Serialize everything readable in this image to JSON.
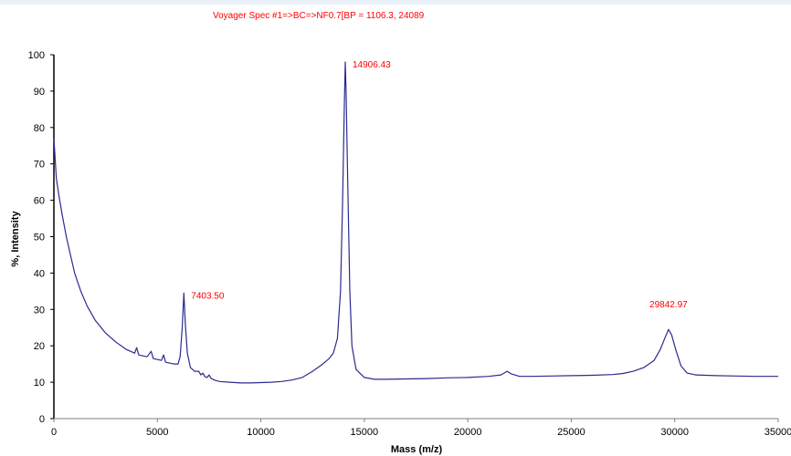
{
  "chart_data": {
    "type": "line",
    "title": "Voyager Spec #1=>BC=>NF0.7[BP = 1106.3, 24089",
    "xlabel": "Mass (m/z)",
    "ylabel": "%, Intensity",
    "xlim": [
      0,
      35000
    ],
    "ylim": [
      0,
      100
    ],
    "xticks": [
      0,
      5000,
      10000,
      15000,
      20000,
      25000,
      30000,
      35000
    ],
    "yticks": [
      0,
      10,
      20,
      30,
      40,
      50,
      60,
      70,
      80,
      90,
      100
    ],
    "grid": false,
    "legend": "none",
    "line_color": "#2b2b8f",
    "label_color": "#ff0000",
    "annotations": [
      {
        "text": "7403.50",
        "x": 6280,
        "y": 34.5
      },
      {
        "text": "14906.43",
        "x": 14080,
        "y": 98
      },
      {
        "text": "29842.97",
        "x": 29700,
        "y": 24.5
      }
    ],
    "series": [
      {
        "values": [
          [
            0,
            77
          ],
          [
            120,
            66
          ],
          [
            250,
            61
          ],
          [
            400,
            56
          ],
          [
            600,
            50
          ],
          [
            800,
            45
          ],
          [
            1000,
            40
          ],
          [
            1300,
            35
          ],
          [
            1600,
            31
          ],
          [
            2000,
            27
          ],
          [
            2500,
            23.5
          ],
          [
            3000,
            21
          ],
          [
            3500,
            19
          ],
          [
            3900,
            18
          ],
          [
            4000,
            19.5
          ],
          [
            4100,
            17.5
          ],
          [
            4500,
            17
          ],
          [
            4700,
            18.5
          ],
          [
            4800,
            16.5
          ],
          [
            5200,
            16
          ],
          [
            5300,
            17.5
          ],
          [
            5400,
            15.5
          ],
          [
            5800,
            15
          ],
          [
            6000,
            15
          ],
          [
            6100,
            17
          ],
          [
            6200,
            25
          ],
          [
            6280,
            34.5
          ],
          [
            6350,
            26
          ],
          [
            6450,
            18
          ],
          [
            6600,
            14
          ],
          [
            6800,
            13
          ],
          [
            7000,
            13
          ],
          [
            7100,
            12
          ],
          [
            7200,
            12.5
          ],
          [
            7300,
            11.5
          ],
          [
            7400,
            11.3
          ],
          [
            7500,
            12
          ],
          [
            7600,
            11
          ],
          [
            7800,
            10.5
          ],
          [
            8000,
            10.2
          ],
          [
            8500,
            10
          ],
          [
            9000,
            9.8
          ],
          [
            9500,
            9.8
          ],
          [
            10000,
            9.9
          ],
          [
            10500,
            10
          ],
          [
            11000,
            10.2
          ],
          [
            11500,
            10.6
          ],
          [
            12000,
            11.3
          ],
          [
            12500,
            13
          ],
          [
            13000,
            15
          ],
          [
            13300,
            16.5
          ],
          [
            13500,
            18
          ],
          [
            13700,
            22
          ],
          [
            13850,
            35
          ],
          [
            13950,
            60
          ],
          [
            14030,
            85
          ],
          [
            14080,
            98
          ],
          [
            14120,
            90
          ],
          [
            14200,
            65
          ],
          [
            14300,
            35
          ],
          [
            14400,
            20
          ],
          [
            14600,
            13.5
          ],
          [
            15000,
            11.3
          ],
          [
            15500,
            10.8
          ],
          [
            16000,
            10.8
          ],
          [
            17000,
            10.9
          ],
          [
            18000,
            11
          ],
          [
            19000,
            11.2
          ],
          [
            20000,
            11.3
          ],
          [
            21000,
            11.6
          ],
          [
            21600,
            12
          ],
          [
            21900,
            13
          ],
          [
            22100,
            12.3
          ],
          [
            22500,
            11.6
          ],
          [
            23000,
            11.6
          ],
          [
            24000,
            11.7
          ],
          [
            25000,
            11.8
          ],
          [
            26000,
            11.9
          ],
          [
            27000,
            12.1
          ],
          [
            27500,
            12.4
          ],
          [
            28000,
            13
          ],
          [
            28500,
            14
          ],
          [
            29000,
            16
          ],
          [
            29300,
            19
          ],
          [
            29550,
            22.5
          ],
          [
            29700,
            24.5
          ],
          [
            29850,
            23
          ],
          [
            30050,
            19
          ],
          [
            30300,
            14.5
          ],
          [
            30600,
            12.5
          ],
          [
            31000,
            12
          ],
          [
            32000,
            11.8
          ],
          [
            33000,
            11.7
          ],
          [
            34000,
            11.6
          ],
          [
            35000,
            11.6
          ]
        ]
      }
    ]
  }
}
